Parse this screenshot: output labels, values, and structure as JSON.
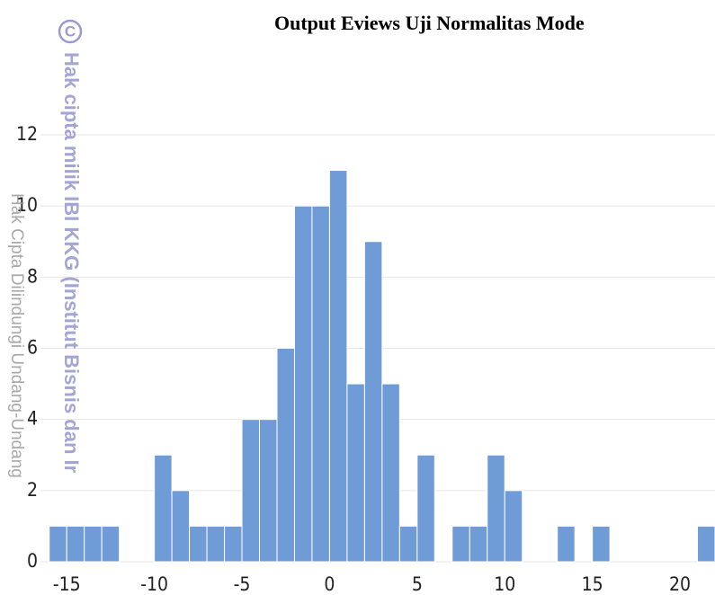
{
  "chart_data": {
    "type": "histogram",
    "title": "Output Eviews Uji Normalitas Mode",
    "watermark": {
      "symbol": "C",
      "line1": "Hak cipta milik IBI KKG (Institut Bisnis dan Ir",
      "line2": "Hak Cipta Dilindungi Undang-Undang"
    },
    "bins": [
      -16,
      -15,
      -14,
      -13,
      -12,
      -11,
      -10,
      -9,
      -8,
      -7,
      -6,
      -5,
      -4,
      -3,
      -2,
      -1,
      0,
      1,
      2,
      3,
      4,
      5,
      6,
      7,
      8,
      9,
      10,
      11,
      12,
      13,
      14,
      15,
      16,
      17,
      18,
      19,
      20,
      21,
      22
    ],
    "counts": [
      1,
      1,
      1,
      1,
      0,
      0,
      3,
      2,
      1,
      1,
      1,
      4,
      4,
      6,
      10,
      10,
      11,
      5,
      9,
      5,
      1,
      3,
      0,
      1,
      1,
      3,
      2,
      0,
      0,
      1,
      0,
      1,
      0,
      0,
      0,
      0,
      0,
      1
    ],
    "color": "#6f9bd6",
    "xlim": [
      -16.5,
      22
    ],
    "xticks": [
      -15,
      -10,
      -5,
      0,
      5,
      10,
      15,
      20
    ],
    "ylim": [
      0,
      12
    ],
    "yticks": [
      0,
      2,
      4,
      6,
      8,
      10,
      12
    ],
    "grid": true
  }
}
